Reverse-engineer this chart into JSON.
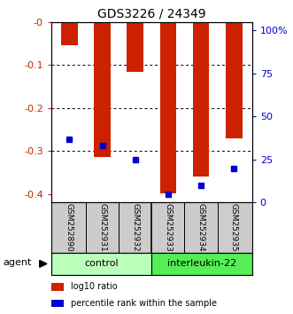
{
  "title": "GDS3226 / 24349",
  "samples": [
    "GSM252890",
    "GSM252931",
    "GSM252932",
    "GSM252933",
    "GSM252934",
    "GSM252935"
  ],
  "log10_ratio": [
    -0.055,
    -0.315,
    -0.115,
    -0.398,
    -0.36,
    -0.27
  ],
  "percentile_rank_pct": [
    37,
    33,
    25,
    5,
    10,
    20
  ],
  "ylim_left": [
    -0.42,
    0.0
  ],
  "ylim_right": [
    0,
    105
  ],
  "yticks_left": [
    0.0,
    -0.1,
    -0.2,
    -0.3,
    -0.4
  ],
  "yticks_right": [
    0,
    25,
    50,
    75,
    100
  ],
  "ytick_labels_left": [
    "-0",
    "-0.1",
    "-0.2",
    "-0.3",
    "-0.4"
  ],
  "ytick_labels_right": [
    "0",
    "25",
    "50",
    "75",
    "100%"
  ],
  "groups": [
    {
      "label": "control",
      "indices": [
        0,
        1,
        2
      ],
      "color": "#bbffbb"
    },
    {
      "label": "interleukin-22",
      "indices": [
        3,
        4,
        5
      ],
      "color": "#55ee55"
    }
  ],
  "bar_color": "#cc2200",
  "dot_color": "#0000cc",
  "background_color": "#ffffff",
  "plot_bg_color": "#ffffff",
  "grid_color": "#000000",
  "title_color": "#000000",
  "left_axis_color": "#cc2200",
  "right_axis_color": "#0000cc",
  "sample_box_color": "#cccccc",
  "agent_label": "agent",
  "legend_items": [
    {
      "label": "log10 ratio",
      "color": "#cc2200"
    },
    {
      "label": "percentile rank within the sample",
      "color": "#0000cc"
    }
  ]
}
